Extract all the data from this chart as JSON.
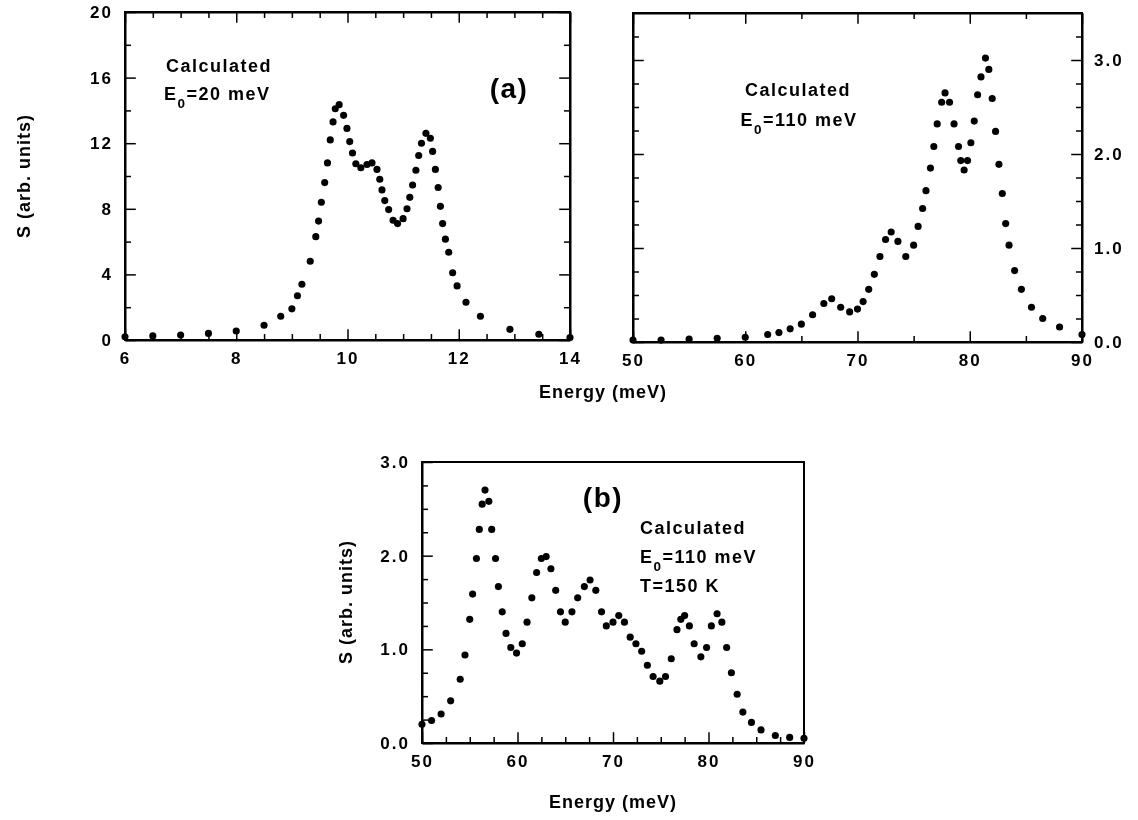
{
  "chart_data": [
    {
      "type": "scatter",
      "ylabel": "S (arb. units)",
      "xlabel": "Energy (meV)",
      "annotations": [
        "Calculated",
        "E$_{0}$=20 meV",
        "(a)"
      ],
      "marker": "circle",
      "xlim": [
        6,
        14
      ],
      "ylim": [
        0,
        20
      ],
      "xticks": [
        6,
        {
          "value": 6.5,
          "label": null
        },
        {
          "value": 7,
          "label": null
        },
        {
          "value": 7.5,
          "label": null
        },
        8,
        {
          "value": 8.5,
          "label": null
        },
        {
          "value": 9,
          "label": null
        },
        {
          "value": 9.5,
          "label": null
        },
        10,
        {
          "value": 10.5,
          "label": null
        },
        {
          "value": 11,
          "label": null
        },
        {
          "value": 11.5,
          "label": null
        },
        12,
        {
          "value": 12.5,
          "label": null
        },
        {
          "value": 13,
          "label": null
        },
        {
          "value": 13.5,
          "label": null
        },
        14
      ],
      "yticks": [
        0,
        {
          "value": 2,
          "label": null
        },
        4,
        {
          "value": 6,
          "label": null
        },
        8,
        {
          "value": 10,
          "label": null
        },
        12,
        {
          "value": 14,
          "label": null
        },
        16,
        {
          "value": 18,
          "label": null
        },
        20
      ],
      "series": [
        {
          "color": "#000000",
          "x": [
            6.0,
            6.5,
            7.0,
            7.5,
            8.0,
            8.5,
            8.8,
            9.0,
            9.1,
            9.18,
            9.33,
            9.43,
            9.48,
            9.53,
            9.59,
            9.64,
            9.69,
            9.74,
            9.78,
            9.85,
            9.93,
            9.99,
            10.04,
            10.09,
            10.15,
            10.24,
            10.35,
            10.44,
            10.53,
            10.58,
            10.62,
            10.67,
            10.74,
            10.82,
            10.9,
            11.0,
            11.07,
            11.12,
            11.17,
            11.23,
            11.28,
            11.33,
            11.41,
            11.49,
            11.53,
            11.58,
            11.63,
            11.67,
            11.71,
            11.76,
            11.82,
            11.89,
            11.97,
            12.13,
            12.39,
            12.92,
            13.44,
            14.0
          ],
          "values": [
            0.2,
            0.25,
            0.3,
            0.4,
            0.55,
            0.9,
            1.45,
            1.9,
            2.7,
            3.4,
            4.8,
            6.3,
            7.25,
            8.4,
            9.6,
            10.8,
            12.2,
            13.3,
            14.1,
            14.35,
            13.7,
            12.9,
            12.1,
            11.4,
            10.75,
            10.5,
            10.7,
            10.8,
            10.4,
            9.8,
            9.15,
            8.5,
            7.95,
            7.3,
            7.1,
            7.4,
            8.0,
            8.7,
            9.45,
            10.35,
            11.25,
            12.0,
            12.6,
            12.3,
            11.5,
            10.4,
            9.3,
            8.15,
            7.1,
            6.15,
            5.35,
            4.1,
            3.3,
            2.3,
            1.45,
            0.65,
            0.35,
            0.15
          ]
        }
      ]
    },
    {
      "type": "scatter",
      "annotations": [
        "Calculated",
        "E$_{0}$=110 meV"
      ],
      "marker": "circle",
      "xlim": [
        50,
        90
      ],
      "y2lim": [
        0,
        3.5
      ],
      "xticks": [
        50,
        {
          "value": 55,
          "label": null
        },
        60,
        {
          "value": 65,
          "label": null
        },
        70,
        {
          "value": 75,
          "label": null
        },
        80,
        {
          "value": 85,
          "label": null
        },
        90
      ],
      "y2ticks": [
        {
          "value": 0,
          "label": "0.0"
        },
        {
          "value": 0.25,
          "label": null
        },
        {
          "value": 0.5,
          "label": null
        },
        {
          "value": 0.75,
          "label": null
        },
        {
          "value": 1,
          "label": "1.0"
        },
        {
          "value": 1.25,
          "label": null
        },
        {
          "value": 1.5,
          "label": null
        },
        {
          "value": 1.75,
          "label": null
        },
        {
          "value": 2,
          "label": "2.0"
        },
        {
          "value": 2.25,
          "label": null
        },
        {
          "value": 2.5,
          "label": null
        },
        {
          "value": 2.75,
          "label": null
        },
        {
          "value": 3,
          "label": "3.0"
        },
        {
          "value": 3.25,
          "label": null
        }
      ],
      "series": [
        {
          "color": "#000000",
          "axis": "y2",
          "x": [
            50,
            52.5,
            55,
            57.5,
            60,
            62,
            63,
            64,
            65,
            66,
            67,
            67.7,
            68.5,
            69.3,
            70,
            70.5,
            71,
            71.5,
            72,
            72.5,
            73,
            73.6,
            74.3,
            75,
            75.4,
            75.8,
            76.1,
            76.5,
            76.8,
            77.1,
            77.5,
            77.8,
            78.2,
            78.6,
            79.0,
            79.2,
            79.5,
            79.8,
            80.1,
            80.4,
            80.7,
            81.0,
            81.4,
            81.7,
            82.0,
            82.3,
            82.6,
            82.9,
            83.2,
            83.5,
            84.0,
            84.6,
            85.5,
            86.5,
            88,
            90
          ],
          "values": [
            0.02,
            0.02,
            0.03,
            0.04,
            0.05,
            0.08,
            0.1,
            0.14,
            0.19,
            0.29,
            0.41,
            0.46,
            0.37,
            0.32,
            0.35,
            0.43,
            0.56,
            0.72,
            0.91,
            1.09,
            1.17,
            1.07,
            0.91,
            1.03,
            1.23,
            1.42,
            1.61,
            1.85,
            2.08,
            2.32,
            2.55,
            2.65,
            2.55,
            2.32,
            2.08,
            1.93,
            1.83,
            1.93,
            2.12,
            2.35,
            2.63,
            2.82,
            3.02,
            2.9,
            2.59,
            2.24,
            1.89,
            1.58,
            1.26,
            1.03,
            0.76,
            0.56,
            0.37,
            0.25,
            0.16,
            0.08
          ]
        }
      ]
    },
    {
      "type": "scatter",
      "ylabel": "S (arb. units)",
      "xlabel": "Energy (meV)",
      "annotations": [
        "(b)",
        "Calculated",
        "E$_{0}$=110 meV",
        "T=150 K"
      ],
      "marker": "circle",
      "xlim": [
        50,
        90
      ],
      "ylim": [
        0,
        3
      ],
      "xticks": [
        50,
        {
          "value": 52.5,
          "label": null
        },
        {
          "value": 55,
          "label": null
        },
        {
          "value": 57.5,
          "label": null
        },
        60,
        {
          "value": 62.5,
          "label": null
        },
        {
          "value": 65,
          "label": null
        },
        {
          "value": 67.5,
          "label": null
        },
        70,
        {
          "value": 72.5,
          "label": null
        },
        {
          "value": 75,
          "label": null
        },
        {
          "value": 77.5,
          "label": null
        },
        80,
        {
          "value": 82.5,
          "label": null
        },
        {
          "value": 85,
          "label": null
        },
        {
          "value": 87.5,
          "label": null
        },
        90
      ],
      "yticks": [
        {
          "value": 0,
          "label": "0.0"
        },
        {
          "value": 0.25,
          "label": null
        },
        {
          "value": 0.5,
          "label": null
        },
        {
          "value": 0.75,
          "label": null
        },
        {
          "value": 1,
          "label": "1.0"
        },
        {
          "value": 1.25,
          "label": null
        },
        {
          "value": 1.5,
          "label": null
        },
        {
          "value": 1.75,
          "label": null
        },
        {
          "value": 2,
          "label": "2.0"
        },
        {
          "value": 2.25,
          "label": null
        },
        {
          "value": 2.5,
          "label": null
        },
        {
          "value": 2.75,
          "label": null
        },
        {
          "value": 3,
          "label": "3.0"
        }
      ],
      "series": [
        {
          "color": "#000000",
          "x": [
            50,
            51,
            52,
            53,
            54,
            54.5,
            55,
            55.3,
            55.7,
            56,
            56.3,
            56.6,
            57,
            57.3,
            57.7,
            58,
            58.4,
            58.8,
            59.3,
            59.9,
            60.5,
            61,
            61.5,
            62,
            62.5,
            63,
            63.5,
            64,
            64.5,
            65,
            65.7,
            66.3,
            67,
            67.6,
            68.2,
            68.8,
            69.3,
            70,
            70.6,
            71.2,
            71.8,
            72.4,
            73,
            73.6,
            74.2,
            74.9,
            75.5,
            76.1,
            76.7,
            77.1,
            77.5,
            78,
            78.5,
            79.2,
            79.8,
            80.3,
            80.9,
            81.4,
            81.9,
            82.4,
            83,
            83.6,
            84.5,
            85.5,
            87,
            88.5,
            90
          ],
          "values": [
            0.2,
            0.24,
            0.31,
            0.45,
            0.68,
            0.94,
            1.32,
            1.59,
            1.97,
            2.28,
            2.55,
            2.7,
            2.58,
            2.28,
            1.97,
            1.67,
            1.4,
            1.17,
            1.02,
            0.96,
            1.06,
            1.29,
            1.55,
            1.82,
            1.97,
            1.99,
            1.86,
            1.63,
            1.4,
            1.29,
            1.4,
            1.55,
            1.67,
            1.74,
            1.63,
            1.4,
            1.25,
            1.29,
            1.36,
            1.29,
            1.13,
            1.06,
            0.98,
            0.83,
            0.71,
            0.66,
            0.71,
            0.9,
            1.21,
            1.32,
            1.36,
            1.25,
            1.06,
            0.92,
            1.02,
            1.25,
            1.38,
            1.29,
            1.02,
            0.75,
            0.52,
            0.33,
            0.22,
            0.14,
            0.08,
            0.06,
            0.05
          ]
        }
      ]
    }
  ]
}
